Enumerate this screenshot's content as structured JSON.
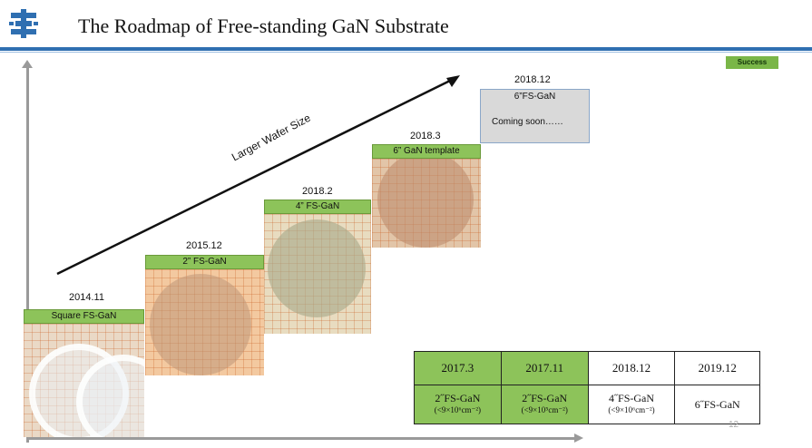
{
  "slide": {
    "title": "The Roadmap of Free-standing GaN Substrate",
    "badge": "Success",
    "trend_label": "Larger Wafer Size",
    "page_number": "12",
    "accent_color": "#2f6fb1",
    "step_color": "#8dc35a"
  },
  "steps": [
    {
      "date": "2014.11",
      "label": "Square FS-GaN"
    },
    {
      "date": "2015.12",
      "label": "2” FS-GaN"
    },
    {
      "date": "2018.2",
      "label": "4” FS-GaN"
    },
    {
      "date": "2018.3",
      "label": "6” GaN template"
    },
    {
      "date": "2018.12",
      "label": "6”FS-GaN",
      "note": "Coming soon……"
    }
  ],
  "plan_table": {
    "dates": [
      "2017.3",
      "2017.11",
      "2018.12",
      "2019.12"
    ],
    "items": [
      {
        "name": "2˝FS-GaN",
        "spec": "(<9×10⁶cm⁻²)"
      },
      {
        "name": "2˝FS-GaN",
        "spec": "(<9×10⁵cm⁻²)"
      },
      {
        "name": "4˝FS-GaN",
        "spec": "(<9×10⁶cm⁻²)"
      },
      {
        "name": "6˝FS-GaN",
        "spec": ""
      }
    ]
  }
}
